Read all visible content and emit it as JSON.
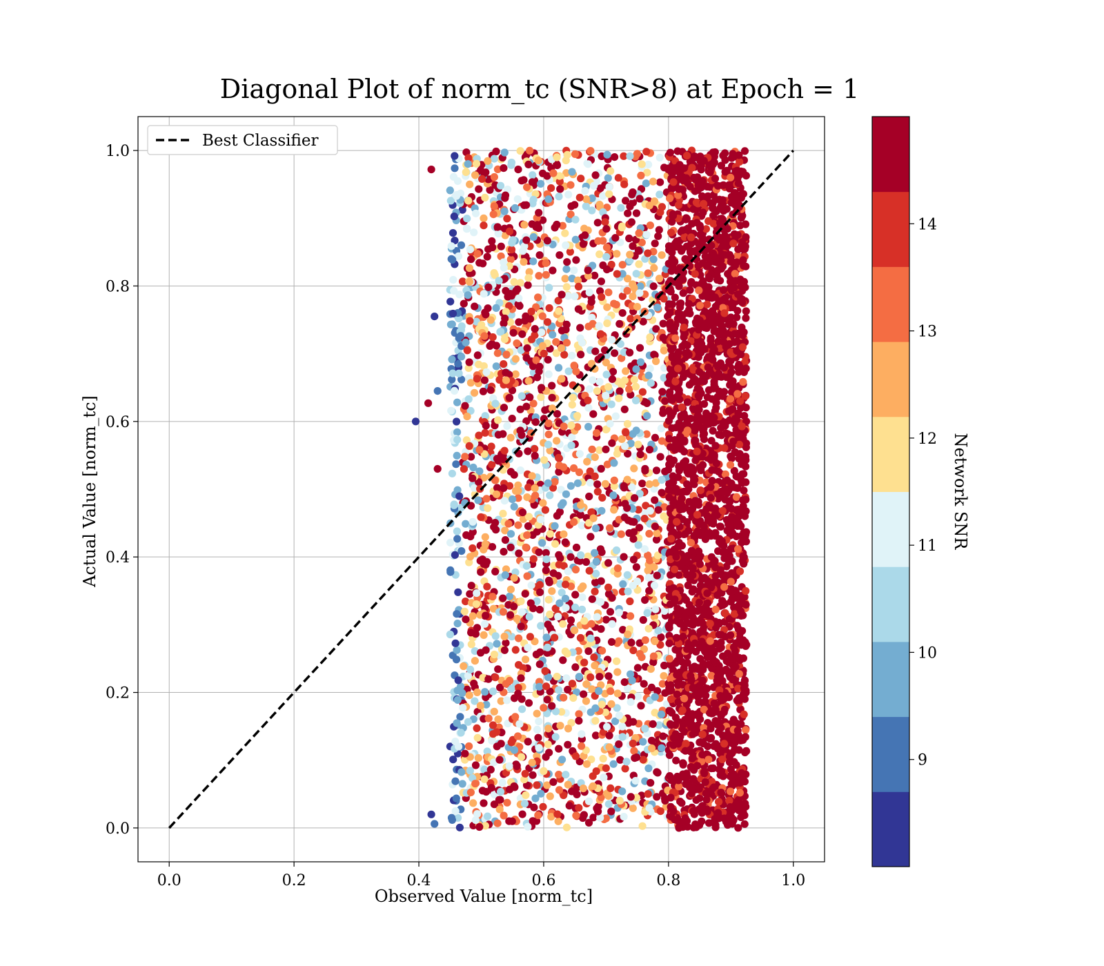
{
  "chart_data": {
    "type": "scatter",
    "title": "Diagonal Plot of norm_tc (SNR>8) at Epoch = 1",
    "xlabel": "Observed Value [norm_tc]",
    "ylabel": "Actual Value [norm_tc]",
    "xlim": [
      -0.05,
      1.05
    ],
    "ylim": [
      -0.05,
      1.05
    ],
    "x_ticks": [
      "0.0",
      "0.2",
      "0.4",
      "0.6",
      "0.8",
      "1.0"
    ],
    "y_ticks": [
      "0.0",
      "0.2",
      "0.4",
      "0.6",
      "0.8",
      "1.0"
    ],
    "grid": true,
    "legend": {
      "position": "top-left",
      "entries": [
        "Best Classifier"
      ]
    },
    "reference_line": {
      "name": "Best Classifier",
      "x": [
        0.0,
        1.0
      ],
      "y": [
        0.0,
        1.0
      ],
      "style": "dashed",
      "color": "#000000"
    },
    "scatter_extent": {
      "x_range": [
        0.43,
        0.93
      ],
      "y_range": [
        0.0,
        1.0
      ],
      "dense_high_snr_region_x": [
        0.8,
        0.92
      ]
    },
    "colorbar": {
      "label": "Network SNR",
      "range": [
        8,
        15
      ],
      "tick_labels": [
        "9",
        "10",
        "11",
        "12",
        "13",
        "14"
      ],
      "colors": [
        "#313695",
        "#4575b4",
        "#74add1",
        "#abd9e9",
        "#e0f3f8",
        "#fee090",
        "#fdae61",
        "#f46d43",
        "#d73027",
        "#a50026"
      ]
    }
  }
}
